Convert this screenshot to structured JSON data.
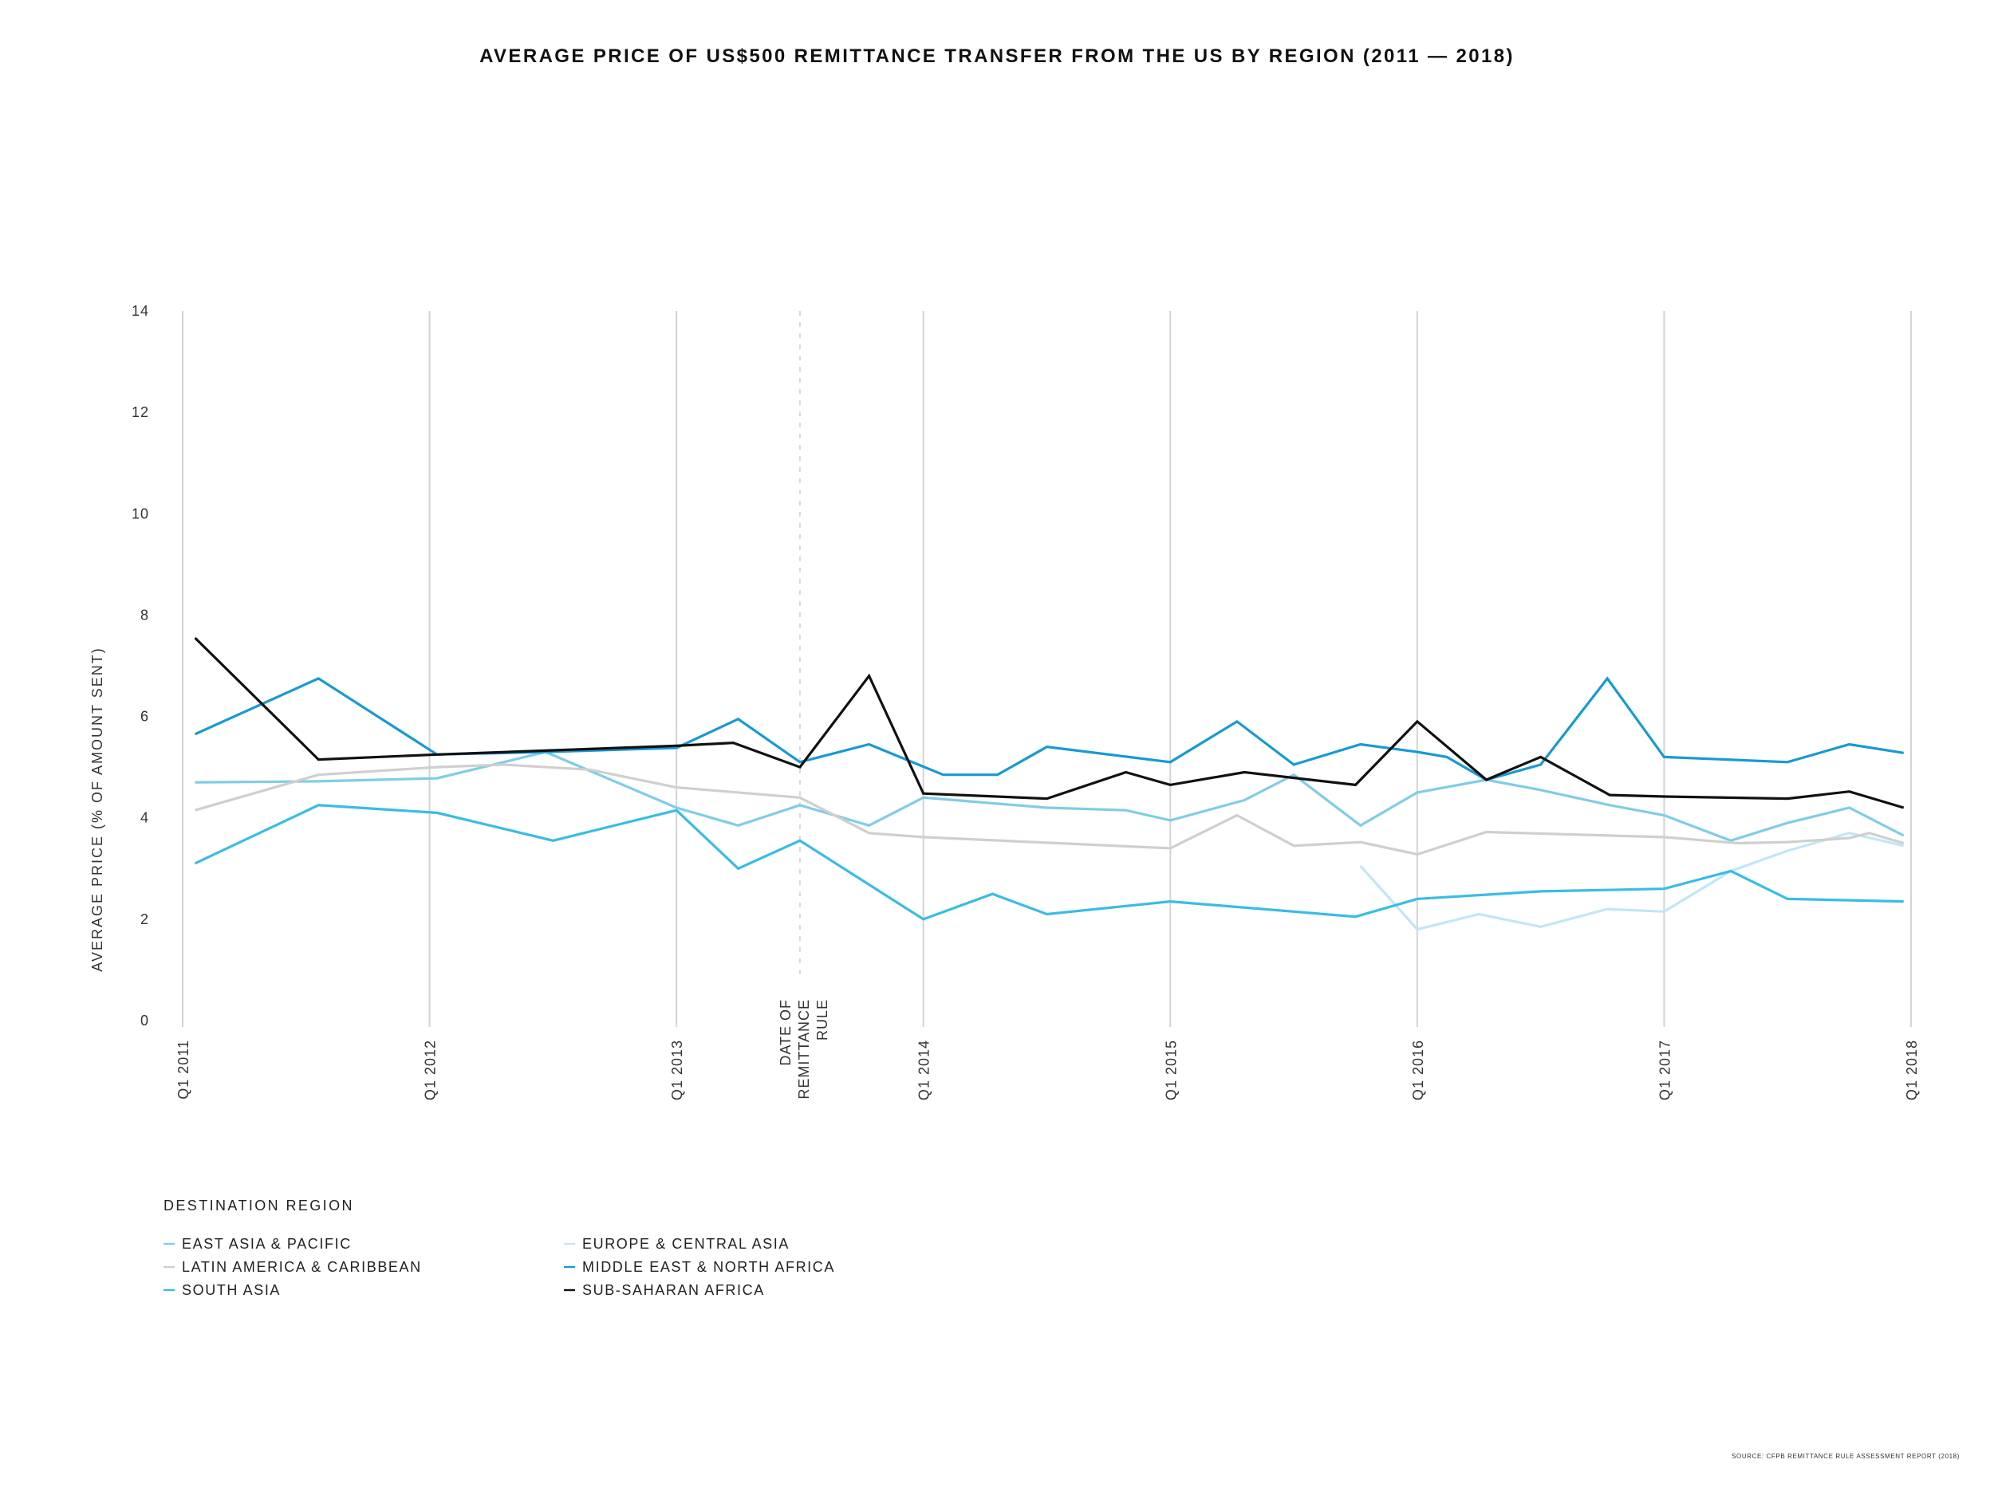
{
  "chart_data": {
    "type": "line",
    "title": "AVERAGE PRICE OF US$500 REMITTANCE TRANSFER FROM THE US BY REGION (2011 — 2018)",
    "ylabel": "AVERAGE PRICE (% OF AMOUNT SENT)",
    "xlabel": "",
    "ylim": [
      0,
      14
    ],
    "xlim": [
      2011.0,
      2018.0
    ],
    "y_ticks": [
      0,
      2,
      4,
      6,
      8,
      10,
      12,
      14
    ],
    "x_ticks": [
      {
        "label": "Q1 2011",
        "x": 2011.0
      },
      {
        "label": "Q1 2012",
        "x": 2012.0
      },
      {
        "label": "Q1 2013",
        "x": 2013.0
      },
      {
        "label": "Q1 2014",
        "x": 2014.0
      },
      {
        "label": "Q1 2015",
        "x": 2015.0
      },
      {
        "label": "Q1 2016",
        "x": 2016.0
      },
      {
        "label": "Q1 2017",
        "x": 2017.0
      },
      {
        "label": "Q1 2018",
        "x": 2018.0
      }
    ],
    "annotation": {
      "lines": [
        "DATE OF",
        "REMITTANCE",
        "RULE"
      ],
      "x": 2013.5
    },
    "legend_title": "DESTINATION REGION",
    "series": [
      {
        "name": "EAST ASIA & PACIFIC",
        "color": "#7fcde6",
        "x": [
          2011.05,
          2011.55,
          2012.03,
          2012.47,
          2013.0,
          2013.25,
          2013.5,
          2013.78,
          2014.0,
          2014.5,
          2014.82,
          2015.0,
          2015.3,
          2015.5,
          2015.77,
          2016.0,
          2016.28,
          2016.5,
          2016.78,
          2017.0,
          2017.27,
          2017.5,
          2017.75,
          2017.97
        ],
        "values": [
          4.7,
          4.72,
          4.78,
          5.3,
          4.2,
          3.85,
          4.25,
          3.85,
          4.4,
          4.2,
          4.15,
          3.95,
          4.35,
          4.85,
          3.85,
          4.5,
          4.75,
          4.55,
          4.25,
          4.05,
          3.55,
          3.9,
          4.2,
          3.65
        ]
      },
      {
        "name": "EUROPE & CENTRAL ASIA",
        "color": "#c2e6f5",
        "x": [
          2015.77,
          2016.0,
          2016.25,
          2016.5,
          2016.77,
          2017.0,
          2017.27,
          2017.5,
          2017.75,
          2017.97
        ],
        "values": [
          3.05,
          1.8,
          2.1,
          1.85,
          2.2,
          2.15,
          2.95,
          3.35,
          3.7,
          3.45
        ]
      },
      {
        "name": "LATIN AMERICA & CARIBBEAN",
        "color": "#cfcfcf",
        "x": [
          2011.05,
          2011.55,
          2012.03,
          2012.3,
          2012.65,
          2013.0,
          2013.5,
          2013.78,
          2014.0,
          2015.0,
          2015.27,
          2015.5,
          2015.77,
          2016.0,
          2016.28,
          2017.0,
          2017.3,
          2017.5,
          2017.75,
          2017.83,
          2017.97
        ],
        "values": [
          4.15,
          4.85,
          5.0,
          5.05,
          4.95,
          4.6,
          4.4,
          3.7,
          3.62,
          3.4,
          4.05,
          3.45,
          3.52,
          3.28,
          3.72,
          3.62,
          3.5,
          3.52,
          3.6,
          3.7,
          3.5
        ]
      },
      {
        "name": "MIDDLE EAST & NORTH AFRICA",
        "color": "#179ad3",
        "x": [
          2011.05,
          2011.55,
          2012.03,
          2012.47,
          2013.0,
          2013.25,
          2013.5,
          2013.78,
          2014.08,
          2014.3,
          2014.5,
          2015.0,
          2015.27,
          2015.5,
          2015.77,
          2016.0,
          2016.12,
          2016.28,
          2016.5,
          2016.77,
          2017.0,
          2017.5,
          2017.75,
          2017.97
        ],
        "values": [
          5.65,
          6.75,
          5.25,
          5.3,
          5.38,
          5.95,
          5.1,
          5.45,
          4.85,
          4.85,
          5.4,
          5.1,
          5.9,
          5.05,
          5.45,
          5.3,
          5.2,
          4.75,
          5.05,
          6.75,
          5.2,
          5.1,
          5.45,
          5.28
        ]
      },
      {
        "name": "SOUTH ASIA",
        "color": "#39bce5",
        "x": [
          2011.05,
          2011.55,
          2012.03,
          2012.5,
          2013.0,
          2013.25,
          2013.5,
          2014.0,
          2014.28,
          2014.5,
          2015.0,
          2015.75,
          2016.0,
          2016.5,
          2017.0,
          2017.27,
          2017.5,
          2017.97
        ],
        "values": [
          3.1,
          4.25,
          4.1,
          3.55,
          4.15,
          3.0,
          3.55,
          2.0,
          2.5,
          2.1,
          2.35,
          2.05,
          2.4,
          2.55,
          2.6,
          2.95,
          2.4,
          2.35
        ]
      },
      {
        "name": "SUB-SAHARAN AFRICA",
        "color": "#111111",
        "x": [
          2011.05,
          2011.55,
          2012.03,
          2013.0,
          2013.23,
          2013.5,
          2013.78,
          2014.0,
          2014.5,
          2014.82,
          2015.0,
          2015.3,
          2015.75,
          2016.0,
          2016.28,
          2016.5,
          2016.78,
          2017.0,
          2017.5,
          2017.75,
          2017.97
        ],
        "values": [
          7.55,
          5.15,
          5.25,
          5.42,
          5.48,
          5.0,
          6.8,
          4.48,
          4.38,
          4.9,
          4.65,
          4.9,
          4.65,
          5.9,
          4.75,
          5.2,
          4.45,
          4.42,
          4.38,
          4.52,
          4.2
        ]
      }
    ],
    "source": "SOURCE: CFPB REMITTANCE RULE ASSESSMENT REPORT (2018)"
  }
}
